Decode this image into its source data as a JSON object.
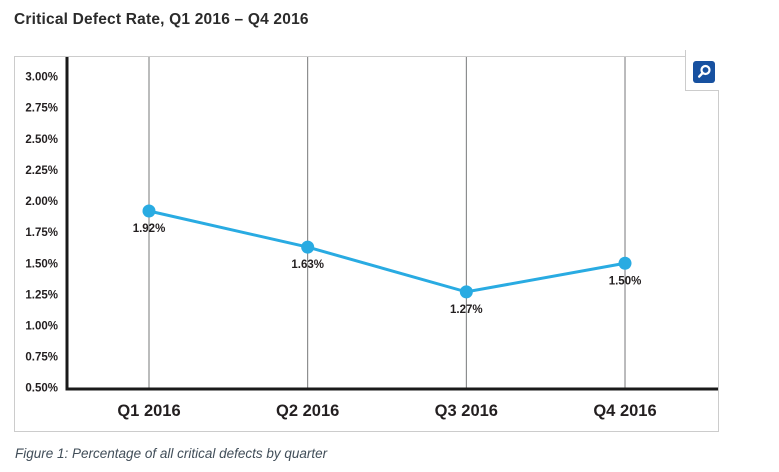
{
  "page": {
    "title": "Critical Defect Rate, Q1 2016 – Q4 2016",
    "caption": "Figure 1: Percentage of all critical defects by quarter"
  },
  "toolbar": {
    "zoom_button": {
      "icon": "magnifier-icon",
      "background": "#1751a0",
      "glyph_color": "#ffffff"
    }
  },
  "colors": {
    "line": "#29abe2",
    "marker": "#29abe2",
    "axis": "#1a1a1a",
    "gridline": "#77787a",
    "chart_text": "#231f20",
    "panel_border": "#cccccc",
    "title_text": "#2b2b2b",
    "caption_text": "#414e59"
  },
  "chart_data": {
    "type": "line",
    "title": "Critical Defect Rate, Q1 2016 – Q4 2016",
    "categories": [
      "Q1 2016",
      "Q2 2016",
      "Q3 2016",
      "Q4 2016"
    ],
    "values": [
      1.92,
      1.63,
      1.27,
      1.5
    ],
    "point_labels": [
      "1.92%",
      "1.63%",
      "1.27%",
      "1.50%"
    ],
    "xlabel": "",
    "ylabel": "",
    "ylim": [
      0.5,
      3.0
    ],
    "y_tick_step": 0.25,
    "y_tick_labels": [
      "3.00%",
      "2.75%",
      "2.50%",
      "2.25%",
      "2.00%",
      "1.75%",
      "1.50%",
      "1.25%",
      "1.00%",
      "0.75%",
      "0.50%"
    ],
    "grid": "vertical-only",
    "legend": "none",
    "marker": "filled-circle"
  }
}
